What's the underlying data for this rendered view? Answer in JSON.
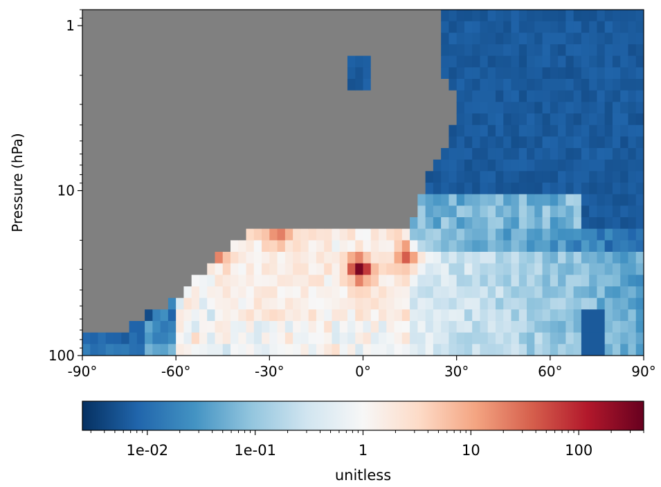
{
  "chart_data": {
    "type": "heatmap",
    "title": "",
    "xlabel": "",
    "ylabel": "Pressure (hPa)",
    "xlim": [
      -90,
      90
    ],
    "ylim": [
      100,
      0.8
    ],
    "y_scale": "log",
    "grid": false,
    "x_ticks": [
      {
        "value": -90,
        "label": "-90°"
      },
      {
        "value": -60,
        "label": "-60°"
      },
      {
        "value": -30,
        "label": "-30°"
      },
      {
        "value": 0,
        "label": "0°"
      },
      {
        "value": 30,
        "label": "30°"
      },
      {
        "value": 60,
        "label": "60°"
      },
      {
        "value": 90,
        "label": "90°"
      }
    ],
    "y_ticks": [
      {
        "value": 1,
        "label": "1"
      },
      {
        "value": 10,
        "label": "10"
      },
      {
        "value": 100,
        "label": "100"
      }
    ],
    "colormap": "RdBu_r",
    "missing_color": "#808080",
    "colorbar": {
      "label": "unitless",
      "scale": "log",
      "range": [
        0.0025,
        400
      ],
      "ticks": [
        {
          "value": 0.01,
          "label": "1e-02"
        },
        {
          "value": 0.1,
          "label": "1e-01"
        },
        {
          "value": 1,
          "label": "1"
        },
        {
          "value": 10,
          "label": "10"
        },
        {
          "value": 100,
          "label": "100"
        }
      ],
      "colors": [
        "#053061",
        "#2166ac",
        "#4393c3",
        "#92c5de",
        "#d1e5f0",
        "#f7f7f7",
        "#fddbc7",
        "#f4a582",
        "#d6604d",
        "#b2182b",
        "#67001f"
      ]
    },
    "grid_resolution": {
      "lat_cells": 72,
      "pressure_levels": 30
    },
    "regions": {
      "missing_boundary": {
        "lat": [
          -90,
          -77,
          -72,
          -60,
          -50,
          -42,
          -30,
          -16,
          0,
          10,
          15,
          20,
          22,
          27,
          30,
          31,
          27,
          25,
          26,
          25
        ],
        "p_top": [
          70,
          70,
          60,
          45,
          30,
          20,
          16,
          16,
          16,
          16,
          16,
          10,
          7,
          5,
          3.5,
          2.6,
          2.2,
          1.6,
          1.2,
          0.8
        ]
      },
      "low_values_above_p": 16,
      "low_values_from_lat": 15
    },
    "hotspots": [
      {
        "lat": -1,
        "p": 30,
        "value": 300
      },
      {
        "lat": 14,
        "p": 25,
        "value": 40
      },
      {
        "lat": -47,
        "p": 24,
        "value": 30
      },
      {
        "lat": -27,
        "p": 18,
        "value": 25
      }
    ]
  }
}
